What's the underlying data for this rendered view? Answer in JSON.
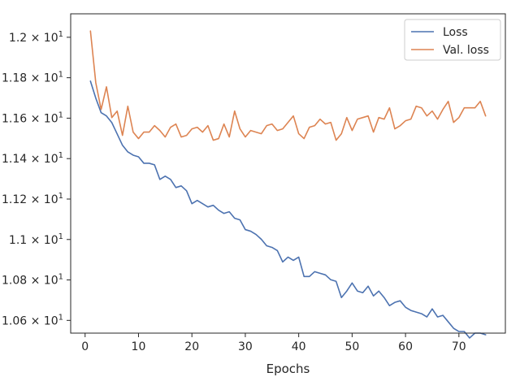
{
  "chart_data": {
    "type": "line",
    "title": "",
    "xlabel": "Epochs",
    "ylabel": "",
    "xlim": [
      -2.7,
      78.7
    ],
    "ylim": [
      10.537,
      12.116
    ],
    "x_ticks": [
      0,
      10,
      20,
      30,
      40,
      50,
      60,
      70
    ],
    "y_ticks": [
      {
        "value": 10.6,
        "label": "1.06 × 10^1"
      },
      {
        "value": 10.8,
        "label": "1.08 × 10^1"
      },
      {
        "value": 11.0,
        "label": "1.1 × 10^1"
      },
      {
        "value": 11.2,
        "label": "1.12 × 10^1"
      },
      {
        "value": 11.4,
        "label": "1.14 × 10^1"
      },
      {
        "value": 11.6,
        "label": "1.16 × 10^1"
      },
      {
        "value": 11.8,
        "label": "1.18 × 10^1"
      },
      {
        "value": 12.0,
        "label": "1.2 × 10^1"
      }
    ],
    "legend_position": "top-right",
    "grid": false,
    "x": [
      1,
      2,
      3,
      4,
      5,
      6,
      7,
      8,
      9,
      10,
      11,
      12,
      13,
      14,
      15,
      16,
      17,
      18,
      19,
      20,
      21,
      22,
      23,
      24,
      25,
      26,
      27,
      28,
      29,
      30,
      31,
      32,
      33,
      34,
      35,
      36,
      37,
      38,
      39,
      40,
      41,
      42,
      43,
      44,
      45,
      46,
      47,
      48,
      49,
      50,
      51,
      52,
      53,
      54,
      55,
      56,
      57,
      58,
      59,
      60,
      61,
      62,
      63,
      64,
      65,
      66,
      67,
      68,
      69,
      70,
      71,
      72,
      73,
      74,
      75
    ],
    "series": [
      {
        "name": "Loss",
        "color": "#4c72b0",
        "values": [
          11.783,
          11.699,
          11.627,
          11.611,
          11.578,
          11.522,
          11.466,
          11.433,
          11.417,
          11.409,
          11.377,
          11.377,
          11.369,
          11.297,
          11.313,
          11.297,
          11.257,
          11.265,
          11.241,
          11.177,
          11.193,
          11.177,
          11.161,
          11.169,
          11.145,
          11.129,
          11.137,
          11.105,
          11.097,
          11.049,
          11.041,
          11.025,
          11.001,
          10.969,
          10.961,
          10.945,
          10.889,
          10.913,
          10.897,
          10.913,
          10.817,
          10.817,
          10.841,
          10.833,
          10.825,
          10.801,
          10.793,
          10.713,
          10.745,
          10.785,
          10.745,
          10.737,
          10.769,
          10.721,
          10.745,
          10.713,
          10.673,
          10.689,
          10.697,
          10.665,
          10.649,
          10.641,
          10.633,
          10.617,
          10.657,
          10.617,
          10.625,
          10.593,
          10.561,
          10.545,
          10.545,
          10.513,
          10.537,
          10.537,
          10.529
        ]
      },
      {
        "name": "Val. loss",
        "color": "#dd8452",
        "values": [
          12.031,
          11.775,
          11.643,
          11.755,
          11.603,
          11.635,
          11.515,
          11.659,
          11.531,
          11.499,
          11.531,
          11.531,
          11.563,
          11.539,
          11.507,
          11.555,
          11.571,
          11.507,
          11.515,
          11.547,
          11.555,
          11.531,
          11.563,
          11.491,
          11.499,
          11.571,
          11.507,
          11.635,
          11.547,
          11.507,
          11.539,
          11.531,
          11.523,
          11.563,
          11.571,
          11.539,
          11.547,
          11.579,
          11.611,
          11.523,
          11.499,
          11.555,
          11.563,
          11.595,
          11.571,
          11.579,
          11.491,
          11.523,
          11.603,
          11.539,
          11.595,
          11.603,
          11.611,
          11.531,
          11.603,
          11.595,
          11.651,
          11.547,
          11.563,
          11.587,
          11.595,
          11.659,
          11.651,
          11.611,
          11.635,
          11.595,
          11.643,
          11.683,
          11.579,
          11.603,
          11.651,
          11.651,
          11.651,
          11.683,
          11.611
        ]
      }
    ]
  }
}
